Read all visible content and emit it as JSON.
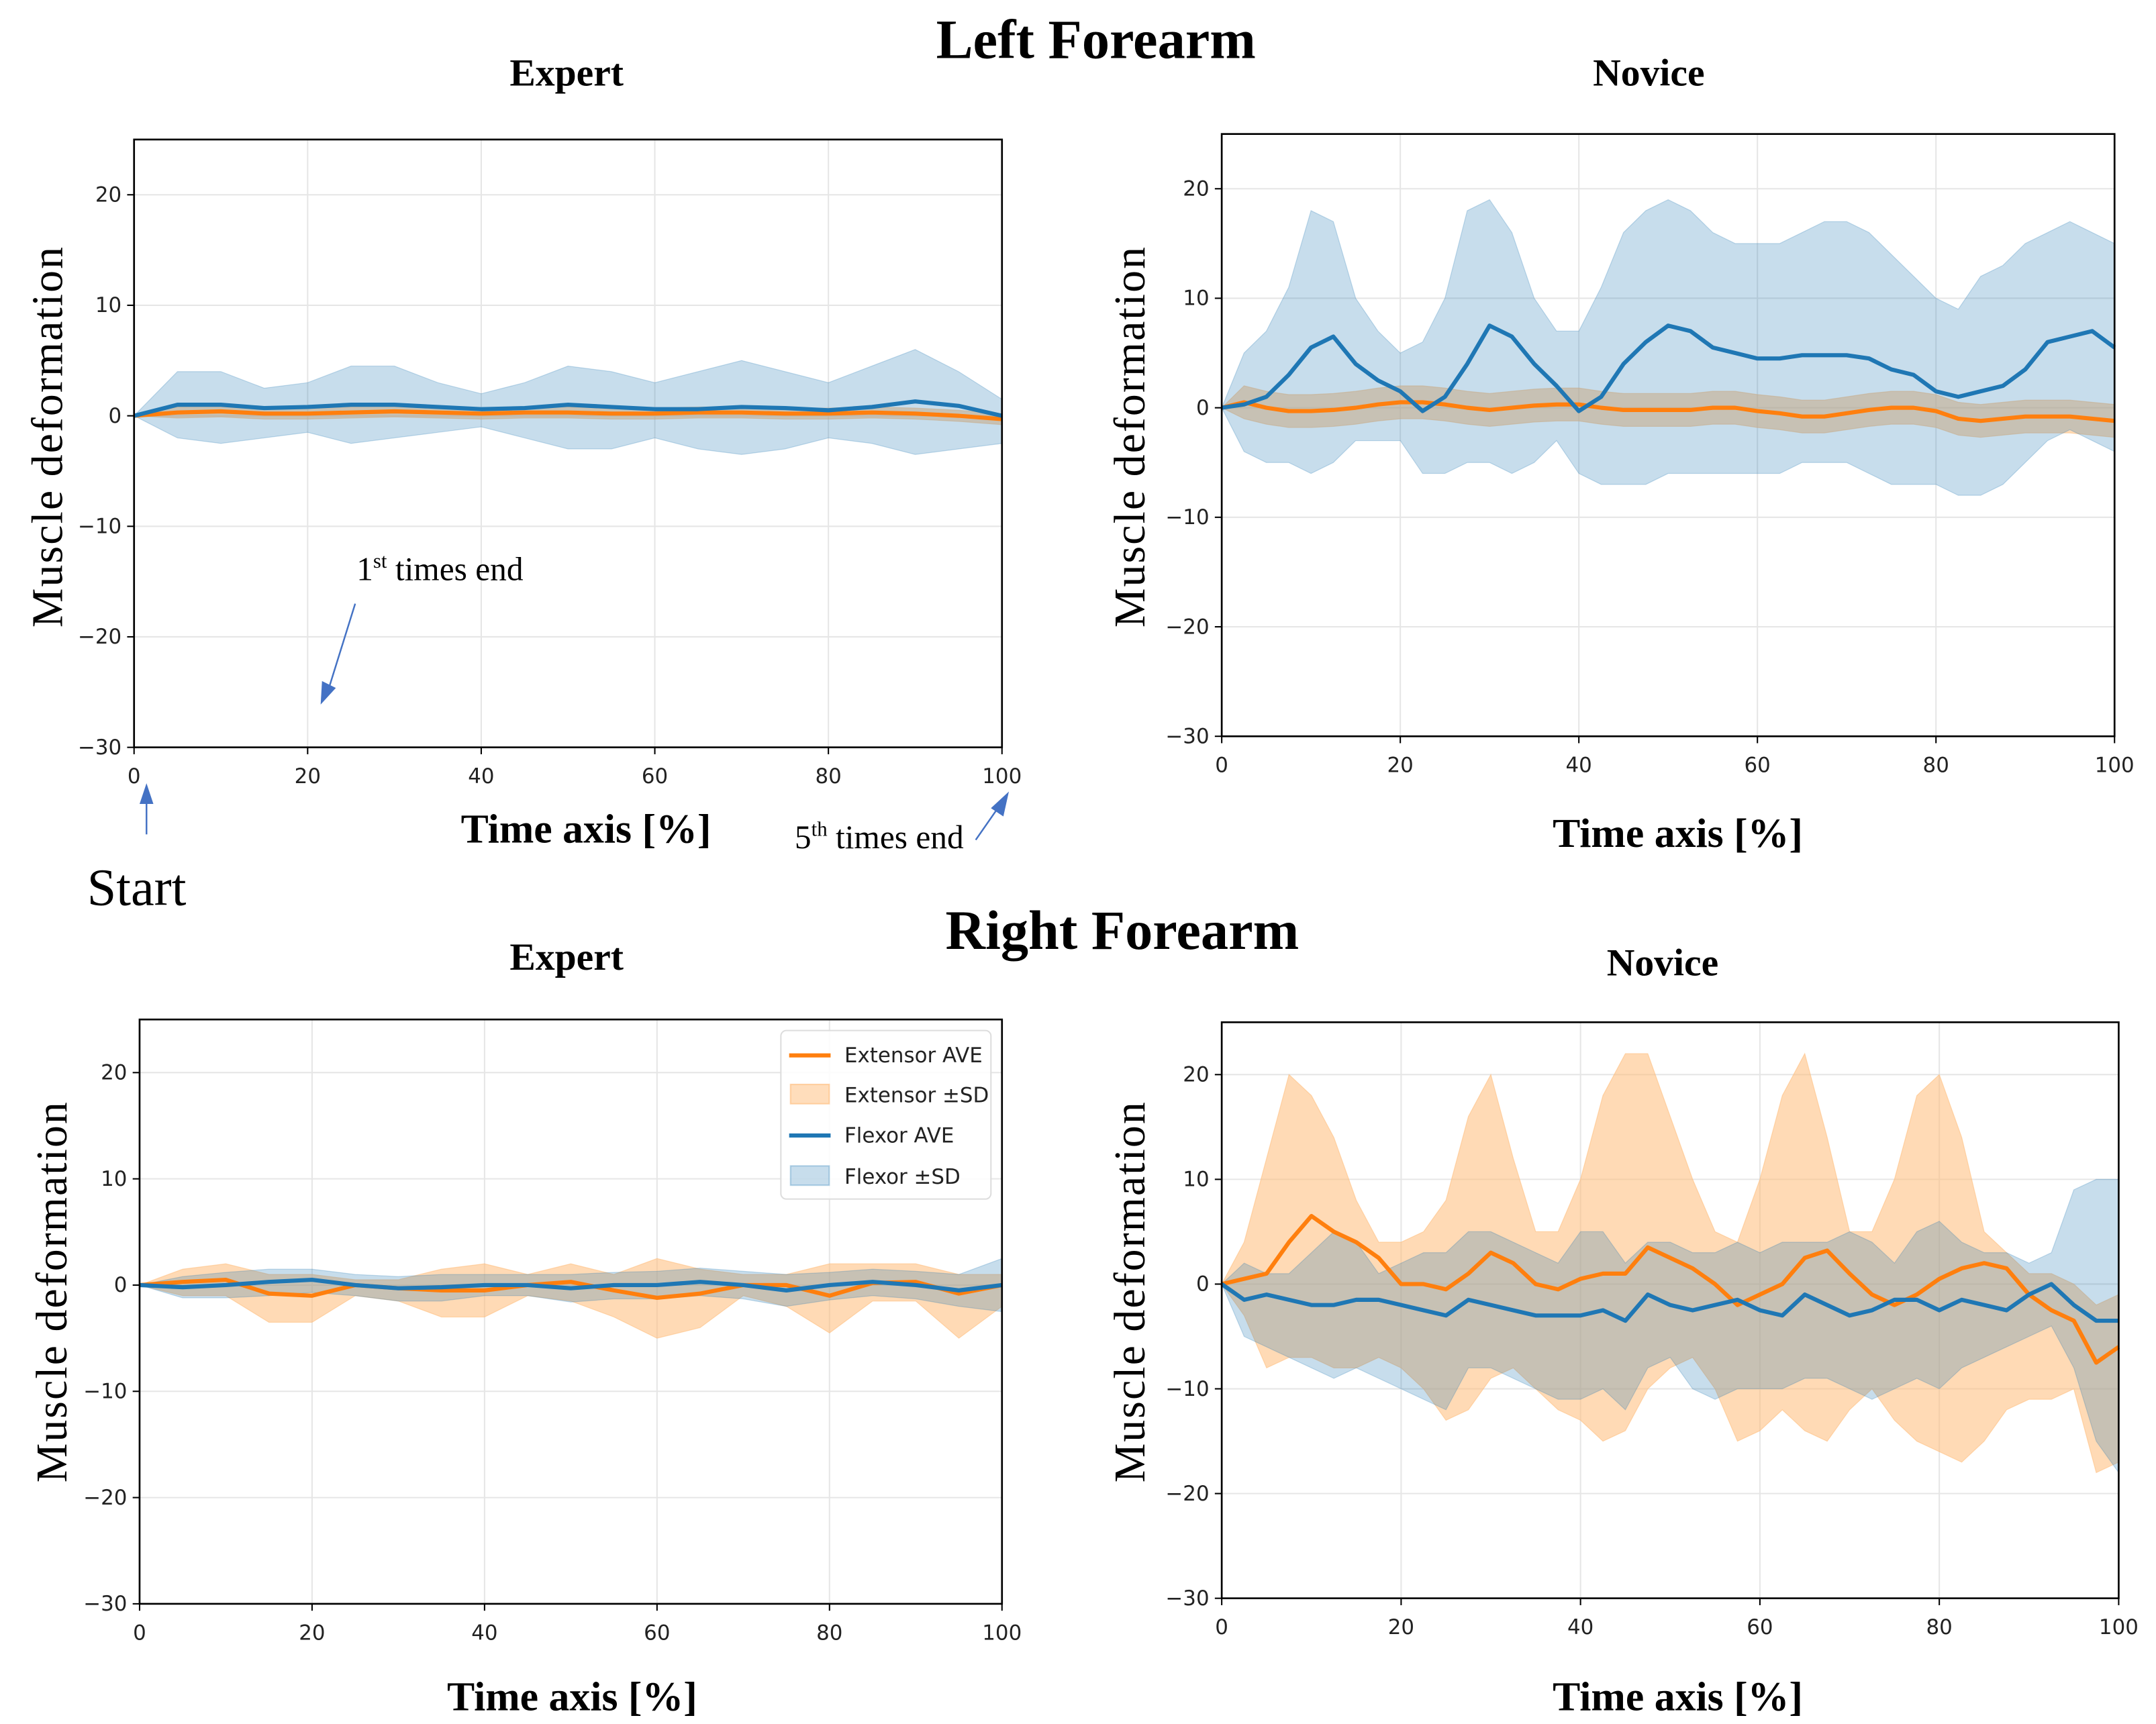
{
  "figure": {
    "left_title": "Left Forearm",
    "right_title": "Right Forearm"
  },
  "annotations": {
    "first_end": {
      "num": "1",
      "sup": "st",
      "text": " times end"
    },
    "fifth_end": {
      "num": "5",
      "sup": "th",
      "text": " times end"
    },
    "start": "Start",
    "arrow_color": "#4472c4"
  },
  "colors": {
    "extensor": "#ff7f0e",
    "extensor_fill": "#ffbb78",
    "flexor": "#1f77b4",
    "flexor_fill": "#1f77b4"
  },
  "legend": {
    "items": [
      "Extensor AVE",
      "Extensor ±SD",
      "Flexor AVE",
      "Flexor ±SD"
    ],
    "placement": "upper-right"
  },
  "chart_data": [
    {
      "type": "line",
      "id": "left-expert",
      "title": "Expert",
      "xlabel": "Time axis [%]",
      "ylabel": "Muscle deformation",
      "xlim": [
        0,
        100
      ],
      "ylim": [
        -30,
        25
      ],
      "xticks": [
        0,
        20,
        40,
        60,
        80,
        100
      ],
      "yticks": [
        -30,
        -20,
        -10,
        0,
        10,
        20
      ],
      "grid": true,
      "x": [
        0,
        5,
        10,
        15,
        20,
        25,
        30,
        35,
        40,
        45,
        50,
        55,
        60,
        65,
        70,
        75,
        80,
        85,
        90,
        95,
        100
      ],
      "series": [
        {
          "name": "Extensor AVE",
          "mean": [
            0,
            0.3,
            0.4,
            0.2,
            0.2,
            0.3,
            0.4,
            0.3,
            0.2,
            0.3,
            0.3,
            0.2,
            0.2,
            0.3,
            0.3,
            0.2,
            0.2,
            0.3,
            0.2,
            0,
            -0.3
          ],
          "upper": [
            0,
            0.8,
            0.9,
            0.7,
            0.7,
            0.8,
            0.9,
            0.8,
            0.7,
            0.8,
            0.8,
            0.7,
            0.7,
            0.8,
            0.8,
            0.7,
            0.7,
            0.8,
            0.7,
            0.5,
            0.2
          ],
          "lower": [
            0,
            -0.2,
            -0.1,
            -0.3,
            -0.3,
            -0.2,
            -0.1,
            -0.2,
            -0.3,
            -0.2,
            -0.2,
            -0.3,
            -0.3,
            -0.2,
            -0.2,
            -0.3,
            -0.3,
            -0.2,
            -0.3,
            -0.5,
            -0.8
          ]
        },
        {
          "name": "Flexor AVE",
          "mean": [
            0,
            1,
            1,
            0.7,
            0.8,
            1,
            1,
            0.8,
            0.6,
            0.7,
            1,
            0.8,
            0.6,
            0.6,
            0.8,
            0.7,
            0.5,
            0.8,
            1.3,
            0.9,
            0
          ],
          "upper": [
            0,
            4,
            4,
            2.5,
            3,
            4.5,
            4.5,
            3,
            2,
            3,
            4.5,
            4,
            3,
            4,
            5,
            4,
            3,
            4.5,
            6,
            4,
            1.5
          ],
          "lower": [
            0,
            -2,
            -2.5,
            -2,
            -1.5,
            -2.5,
            -2,
            -1.5,
            -1,
            -2,
            -3,
            -3,
            -2,
            -3,
            -3.5,
            -3,
            -2,
            -2.5,
            -3.5,
            -3,
            -2.5
          ]
        }
      ]
    },
    {
      "type": "line",
      "id": "left-novice",
      "title": "Novice",
      "xlabel": "Time axis [%]",
      "ylabel": "Muscle deformation",
      "xlim": [
        0,
        100
      ],
      "ylim": [
        -30,
        25
      ],
      "xticks": [
        0,
        20,
        40,
        60,
        80,
        100
      ],
      "yticks": [
        -30,
        -20,
        -10,
        0,
        10,
        20
      ],
      "grid": true,
      "x": [
        0,
        2.5,
        5,
        7.5,
        10,
        12.5,
        15,
        17.5,
        20,
        22.5,
        25,
        27.5,
        30,
        32.5,
        35,
        37.5,
        40,
        42.5,
        45,
        47.5,
        50,
        52.5,
        55,
        57.5,
        60,
        62.5,
        65,
        67.5,
        70,
        72.5,
        75,
        77.5,
        80,
        82.5,
        85,
        87.5,
        90,
        92.5,
        95,
        97.5,
        100
      ],
      "series": [
        {
          "name": "Extensor AVE",
          "mean": [
            0,
            0.5,
            0,
            -0.3,
            -0.3,
            -0.2,
            0,
            0.3,
            0.5,
            0.5,
            0.3,
            0,
            -0.2,
            0,
            0.2,
            0.3,
            0.3,
            0,
            -0.2,
            -0.2,
            -0.2,
            -0.2,
            0,
            0,
            -0.3,
            -0.5,
            -0.8,
            -0.8,
            -0.5,
            -0.2,
            0,
            0,
            -0.3,
            -1,
            -1.2,
            -1,
            -0.8,
            -0.8,
            -0.8,
            -1,
            -1.2
          ],
          "upper": [
            0,
            2,
            1.5,
            1.2,
            1.2,
            1.3,
            1.5,
            1.8,
            2,
            2,
            1.8,
            1.5,
            1.3,
            1.5,
            1.7,
            1.8,
            1.8,
            1.5,
            1.3,
            1.3,
            1.3,
            1.3,
            1.5,
            1.5,
            1.2,
            1,
            0.7,
            0.7,
            1,
            1.3,
            1.5,
            1.5,
            1.2,
            0.5,
            0.3,
            0.5,
            0.7,
            0.7,
            0.7,
            0.5,
            0.3
          ],
          "lower": [
            0,
            -1,
            -1.5,
            -1.8,
            -1.8,
            -1.7,
            -1.5,
            -1.2,
            -1,
            -1,
            -1.2,
            -1.5,
            -1.7,
            -1.5,
            -1.3,
            -1.2,
            -1.2,
            -1.5,
            -1.7,
            -1.7,
            -1.7,
            -1.7,
            -1.5,
            -1.5,
            -1.8,
            -2,
            -2.3,
            -2.3,
            -2,
            -1.7,
            -1.5,
            -1.5,
            -1.8,
            -2.5,
            -2.7,
            -2.5,
            -2.3,
            -2.3,
            -2.3,
            -2.5,
            -2.7
          ]
        },
        {
          "name": "Flexor AVE",
          "mean": [
            0,
            0.3,
            1,
            3,
            5.5,
            6.5,
            4,
            2.5,
            1.5,
            -0.3,
            1,
            4,
            7.5,
            6.5,
            4,
            2,
            -0.3,
            1,
            4,
            6,
            7.5,
            7,
            5.5,
            5,
            4.5,
            4.5,
            4.8,
            4.8,
            4.8,
            4.5,
            3.5,
            3,
            1.5,
            1,
            1.5,
            2,
            3.5,
            6,
            6.5,
            7,
            5.5
          ],
          "upper": [
            0,
            5,
            7,
            11,
            18,
            17,
            10,
            7,
            5,
            6,
            10,
            18,
            19,
            16,
            10,
            7,
            7,
            11,
            16,
            18,
            19,
            18,
            16,
            15,
            15,
            15,
            16,
            17,
            17,
            16,
            14,
            12,
            10,
            9,
            12,
            13,
            15,
            16,
            17,
            16,
            15
          ],
          "lower": [
            0,
            -4,
            -5,
            -5,
            -6,
            -5,
            -3,
            -3,
            -3,
            -6,
            -6,
            -5,
            -5,
            -6,
            -5,
            -3,
            -6,
            -7,
            -7,
            -7,
            -6,
            -6,
            -6,
            -6,
            -6,
            -6,
            -5,
            -5,
            -5,
            -6,
            -7,
            -7,
            -7,
            -8,
            -8,
            -7,
            -5,
            -3,
            -2,
            -3,
            -4
          ]
        }
      ]
    },
    {
      "type": "line",
      "id": "right-expert",
      "title": "Expert",
      "xlabel": "Time axis [%]",
      "ylabel": "Muscle deformation",
      "xlim": [
        0,
        100
      ],
      "ylim": [
        -30,
        25
      ],
      "xticks": [
        0,
        20,
        40,
        60,
        80,
        100
      ],
      "yticks": [
        -30,
        -20,
        -10,
        0,
        10,
        20
      ],
      "grid": true,
      "legend": true,
      "x": [
        0,
        5,
        10,
        15,
        20,
        25,
        30,
        35,
        40,
        45,
        50,
        55,
        60,
        65,
        70,
        75,
        80,
        85,
        90,
        95,
        100
      ],
      "series": [
        {
          "name": "Extensor AVE",
          "mean": [
            0,
            0.3,
            0.5,
            -0.8,
            -1,
            0,
            -0.3,
            -0.5,
            -0.5,
            0,
            0.3,
            -0.5,
            -1.2,
            -0.8,
            0,
            0,
            -1,
            0.2,
            0.3,
            -0.8,
            0
          ],
          "upper": [
            0,
            1.5,
            2,
            1,
            1,
            0.5,
            0.5,
            1.5,
            2,
            1,
            2,
            1,
            2.5,
            1.5,
            1,
            1,
            2,
            2,
            2,
            1,
            1
          ],
          "lower": [
            0,
            -1,
            -1,
            -3.5,
            -3.5,
            -1,
            -1.5,
            -3,
            -3,
            -1,
            -1.5,
            -3,
            -5,
            -4,
            -1,
            -2,
            -4.5,
            -1.5,
            -1.5,
            -5,
            -2
          ]
        },
        {
          "name": "Flexor AVE",
          "mean": [
            0,
            -0.2,
            0,
            0.3,
            0.5,
            0,
            -0.3,
            -0.2,
            0,
            0,
            -0.3,
            0,
            0,
            0.3,
            0,
            -0.5,
            0,
            0.3,
            0,
            -0.5,
            0
          ],
          "upper": [
            0,
            0.8,
            1.2,
            1.5,
            1.5,
            1,
            0.8,
            1,
            1,
            1,
            1,
            1.2,
            1.3,
            1.6,
            1.3,
            1,
            1.2,
            1.5,
            1.3,
            1,
            2.5
          ],
          "lower": [
            0,
            -1.2,
            -1.2,
            -1,
            -0.7,
            -1,
            -1.5,
            -1.5,
            -1,
            -1,
            -1.6,
            -1.3,
            -1.3,
            -1,
            -1.3,
            -2,
            -1.4,
            -1,
            -1.3,
            -2,
            -2.5
          ]
        }
      ]
    },
    {
      "type": "line",
      "id": "right-novice",
      "title": "Novice",
      "xlabel": "Time axis [%]",
      "ylabel": "Muscle deformation",
      "xlim": [
        0,
        100
      ],
      "ylim": [
        -30,
        25
      ],
      "xticks": [
        0,
        20,
        40,
        60,
        80,
        100
      ],
      "yticks": [
        -30,
        -20,
        -10,
        0,
        10,
        20
      ],
      "grid": true,
      "x": [
        0,
        2.5,
        5,
        7.5,
        10,
        12.5,
        15,
        17.5,
        20,
        22.5,
        25,
        27.5,
        30,
        32.5,
        35,
        37.5,
        40,
        42.5,
        45,
        47.5,
        50,
        52.5,
        55,
        57.5,
        60,
        62.5,
        65,
        67.5,
        70,
        72.5,
        75,
        77.5,
        80,
        82.5,
        85,
        87.5,
        90,
        92.5,
        95,
        97.5,
        100
      ],
      "series": [
        {
          "name": "Extensor AVE",
          "mean": [
            0,
            0.5,
            1,
            4,
            6.5,
            5,
            4,
            2.5,
            0,
            0,
            -0.5,
            1,
            3,
            2,
            0,
            -0.5,
            0.5,
            1,
            1,
            3.5,
            2.5,
            1.5,
            0,
            -2,
            -1,
            0,
            2.5,
            3.2,
            1,
            -1,
            -2,
            -1,
            0.5,
            1.5,
            2,
            1.5,
            -1,
            -2.5,
            -3.5,
            -7.5,
            -6
          ],
          "upper": [
            0,
            4,
            12,
            20,
            18,
            14,
            8,
            4,
            4,
            5,
            8,
            16,
            20,
            12,
            5,
            5,
            10,
            18,
            22,
            22,
            16,
            10,
            5,
            4,
            10,
            18,
            22,
            14,
            5,
            5,
            10,
            18,
            20,
            14,
            5,
            3,
            1,
            1,
            0,
            -2,
            -1
          ],
          "lower": [
            0,
            -3,
            -8,
            -7,
            -7,
            -8,
            -8,
            -7,
            -8,
            -10,
            -13,
            -12,
            -9,
            -8,
            -10,
            -12,
            -13,
            -15,
            -14,
            -10,
            -8,
            -7,
            -10,
            -15,
            -14,
            -12,
            -14,
            -15,
            -12,
            -10,
            -13,
            -15,
            -16,
            -17,
            -15,
            -12,
            -11,
            -11,
            -10,
            -18,
            -17
          ]
        },
        {
          "name": "Flexor AVE",
          "mean": [
            0,
            -1.5,
            -1,
            -1.5,
            -2,
            -2,
            -1.5,
            -1.5,
            -2,
            -2.5,
            -3,
            -1.5,
            -2,
            -2.5,
            -3,
            -3,
            -3,
            -2.5,
            -3.5,
            -1,
            -2,
            -2.5,
            -2,
            -1.5,
            -2.5,
            -3,
            -1,
            -2,
            -3,
            -2.5,
            -1.5,
            -1.5,
            -2.5,
            -1.5,
            -2,
            -2.5,
            -1,
            0,
            -2,
            -3.5,
            -3.5
          ],
          "upper": [
            0,
            2,
            1,
            1,
            3,
            5,
            4,
            1,
            2,
            3,
            3,
            5,
            5,
            4,
            3,
            2,
            5,
            5,
            2,
            4,
            4,
            3,
            3,
            4,
            3,
            4,
            4,
            4,
            5,
            4,
            2,
            5,
            6,
            4,
            3,
            3,
            2,
            3,
            9,
            10,
            10
          ],
          "lower": [
            0,
            -5,
            -6,
            -7,
            -8,
            -9,
            -8,
            -9,
            -10,
            -11,
            -12,
            -8,
            -8,
            -9,
            -10,
            -11,
            -11,
            -10,
            -12,
            -8,
            -7,
            -10,
            -11,
            -10,
            -10,
            -10,
            -9,
            -9,
            -10,
            -11,
            -10,
            -9,
            -10,
            -8,
            -7,
            -6,
            -5,
            -4,
            -8,
            -15,
            -18
          ]
        }
      ]
    }
  ]
}
